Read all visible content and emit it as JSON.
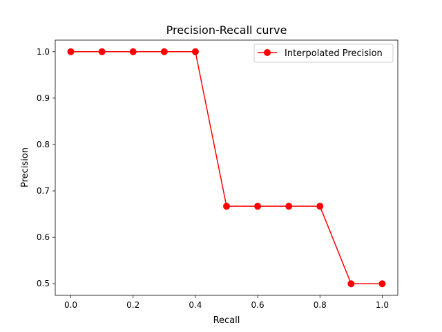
{
  "chart_data": {
    "type": "line",
    "title": "Precision-Recall curve",
    "xlabel": "Recall",
    "ylabel": "Precision",
    "xlim": [
      -0.05,
      1.05
    ],
    "ylim": [
      0.475,
      1.025
    ],
    "xticks": [
      0.0,
      0.2,
      0.4,
      0.6,
      0.8,
      1.0
    ],
    "xtick_labels": [
      "0.0",
      "0.2",
      "0.4",
      "0.6",
      "0.8",
      "1.0"
    ],
    "yticks": [
      0.5,
      0.6,
      0.7,
      0.8,
      0.9,
      1.0
    ],
    "ytick_labels": [
      "0.5",
      "0.6",
      "0.7",
      "0.8",
      "0.9",
      "1.0"
    ],
    "grid": false,
    "legend_position": "top-right",
    "series": [
      {
        "name": "Interpolated Precision",
        "color": "#ff0000",
        "marker": "circle",
        "x": [
          0.0,
          0.1,
          0.2,
          0.3,
          0.4,
          0.5,
          0.6,
          0.7,
          0.8,
          0.9,
          1.0
        ],
        "y": [
          1.0,
          1.0,
          1.0,
          1.0,
          1.0,
          0.667,
          0.667,
          0.667,
          0.667,
          0.5,
          0.5
        ]
      }
    ]
  }
}
